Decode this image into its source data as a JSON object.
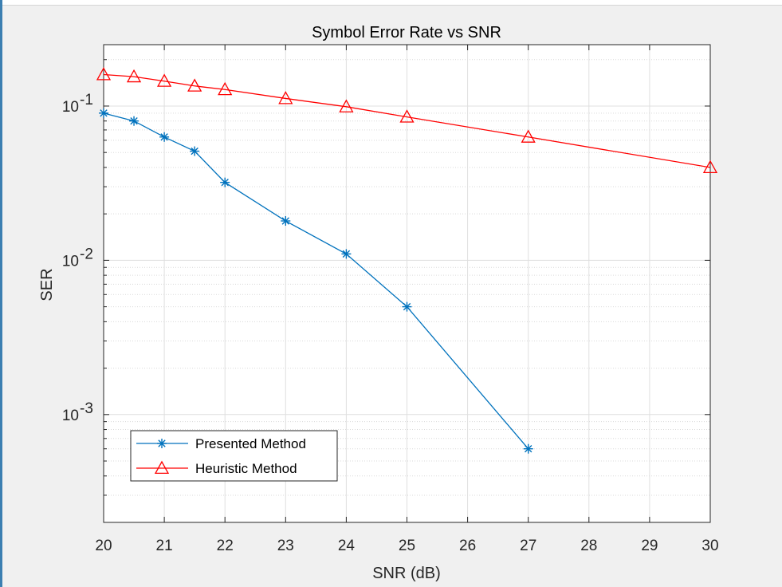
{
  "chart_data": {
    "type": "line",
    "title": "Symbol Error Rate vs SNR",
    "xlabel": "SNR (dB)",
    "ylabel": "SER",
    "yscale": "log",
    "xlim": [
      20,
      30
    ],
    "ylim": [
      0.0002,
      0.25
    ],
    "xticks": [
      20,
      21,
      22,
      23,
      24,
      25,
      26,
      27,
      28,
      29,
      30
    ],
    "xtick_labels": [
      "20",
      "21",
      "22",
      "23",
      "24",
      "25",
      "26",
      "27",
      "28",
      "29",
      "30"
    ],
    "yticks": [
      0.001,
      0.01,
      0.1
    ],
    "ytick_labels": [
      {
        "base": "10",
        "exp": "-3"
      },
      {
        "base": "10",
        "exp": "-2"
      },
      {
        "base": "10",
        "exp": "-1"
      }
    ],
    "grid": true,
    "legend_location": "lower-left",
    "series": [
      {
        "name": "Presented Method",
        "color": "#0072bd",
        "marker": "asterisk",
        "x": [
          20,
          20.5,
          21,
          21.5,
          22,
          23,
          24,
          25,
          27
        ],
        "y": [
          0.09,
          0.08,
          0.063,
          0.051,
          0.032,
          0.018,
          0.011,
          0.005,
          0.0006
        ]
      },
      {
        "name": "Heuristic Method",
        "color": "#ff0000",
        "marker": "triangle",
        "x": [
          20,
          20.5,
          21,
          21.5,
          22,
          23,
          24,
          25,
          27,
          30
        ],
        "y": [
          0.16,
          0.155,
          0.145,
          0.135,
          0.128,
          0.112,
          0.099,
          0.085,
          0.063,
          0.04
        ]
      }
    ]
  }
}
